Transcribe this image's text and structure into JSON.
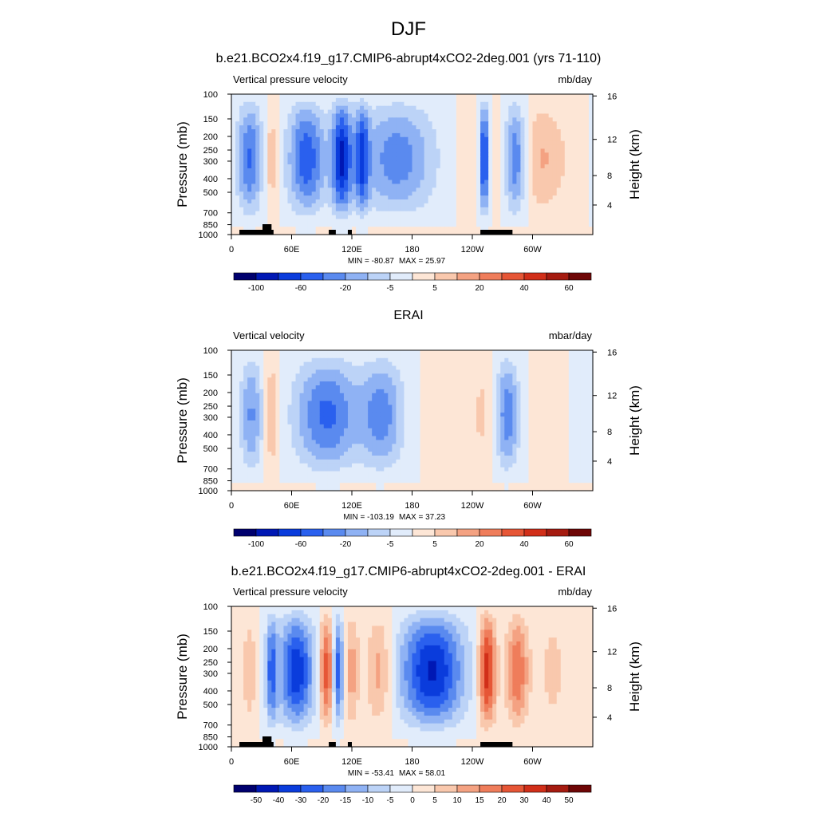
{
  "figure": {
    "title": "DJF",
    "ylabel_left": "Pressure (mb)",
    "ylabel_right": "Height (km)"
  },
  "chart_data": [
    {
      "type": "heatmap",
      "title": "b.e21.BCO2x4.f19_g17.CMIP6-abrupt4xCO2-2deg.001 (yrs 71-110)",
      "left_label": "Vertical pressure velocity",
      "units": "mb/day",
      "x_ticks": [
        "0",
        "60E",
        "120E",
        "180",
        "120W",
        "60W"
      ],
      "y_ticks": [
        "100",
        "150",
        "200",
        "250",
        "300",
        "400",
        "500",
        "700",
        "850",
        "1000"
      ],
      "height_ticks": [
        "4",
        "8",
        "12",
        "16"
      ],
      "min_label": "MIN = -80.87",
      "max_label": "MAX = 25.97",
      "min": -80.87,
      "max": 25.97,
      "colorbar_labels": [
        "-100",
        "-60",
        "-20",
        "-5",
        "5",
        "20",
        "40",
        "60"
      ],
      "colorbar_colors": [
        "#00006e",
        "#0018b4",
        "#0a3cdc",
        "#2a60ee",
        "#5a8aef",
        "#8fb2f4",
        "#bcd3f7",
        "#e1ecfb",
        "#fde6d6",
        "#f9c8ad",
        "#f4a282",
        "#ef7d5b",
        "#e65636",
        "#d12f19",
        "#a51b10",
        "#6e0606"
      ],
      "features": [
        {
          "lon": 18,
          "w": 9,
          "v": -42
        },
        {
          "lon": 40,
          "w": 5,
          "v": 18
        },
        {
          "lon": 75,
          "w": 13,
          "v": -48
        },
        {
          "lon": 110,
          "w": 7,
          "v": -62
        },
        {
          "lon": 130,
          "w": 5,
          "v": -45
        },
        {
          "lon": 165,
          "w": 26,
          "v": -36
        },
        {
          "lon": 235,
          "w": 6,
          "v": 8
        },
        {
          "lon": 252,
          "w": 3,
          "v": -60
        },
        {
          "lon": 262,
          "w": 4,
          "v": 10
        },
        {
          "lon": 283,
          "w": 7,
          "v": -38
        },
        {
          "lon": 310,
          "w": 12,
          "v": 20
        },
        {
          "lon": 340,
          "w": 14,
          "v": 8
        }
      ]
    },
    {
      "type": "heatmap",
      "title": "ERAI",
      "left_label": "Vertical velocity",
      "units": "mbar/day",
      "x_ticks": [
        "0",
        "60E",
        "120E",
        "180",
        "120W",
        "60W"
      ],
      "y_ticks": [
        "100",
        "150",
        "200",
        "250",
        "300",
        "400",
        "500",
        "700",
        "850",
        "1000"
      ],
      "height_ticks": [
        "4",
        "8",
        "12",
        "16"
      ],
      "min_label": "MIN = -103.19",
      "max_label": "MAX = 37.23",
      "min": -103.19,
      "max": 37.23,
      "colorbar_labels": [
        "-100",
        "-60",
        "-20",
        "-5",
        "5",
        "20",
        "40",
        "60"
      ],
      "colorbar_colors": [
        "#00006e",
        "#0018b4",
        "#0a3cdc",
        "#2a60ee",
        "#5a8aef",
        "#8fb2f4",
        "#bcd3f7",
        "#e1ecfb",
        "#fde6d6",
        "#f9c8ad",
        "#f4a282",
        "#ef7d5b",
        "#e65636",
        "#d12f19",
        "#a51b10",
        "#6e0606"
      ],
      "features": [
        {
          "lon": 20,
          "w": 8,
          "v": -40
        },
        {
          "lon": 40,
          "w": 5,
          "v": 28
        },
        {
          "lon": 95,
          "w": 22,
          "v": -55
        },
        {
          "lon": 150,
          "w": 15,
          "v": -45
        },
        {
          "lon": 215,
          "w": 14,
          "v": 12
        },
        {
          "lon": 250,
          "w": 8,
          "v": 15
        },
        {
          "lon": 275,
          "w": 8,
          "v": -48
        },
        {
          "lon": 320,
          "w": 12,
          "v": 10
        },
        {
          "lon": 345,
          "w": 10,
          "v": -8
        }
      ]
    },
    {
      "type": "heatmap",
      "title": "b.e21.BCO2x4.f19_g17.CMIP6-abrupt4xCO2-2deg.001 - ERAI",
      "left_label": "Vertical pressure velocity",
      "units": "mb/day",
      "x_ticks": [
        "0",
        "60E",
        "120E",
        "180",
        "120W",
        "60W"
      ],
      "y_ticks": [
        "100",
        "150",
        "200",
        "250",
        "300",
        "400",
        "500",
        "700",
        "850",
        "1000"
      ],
      "height_ticks": [
        "4",
        "8",
        "12",
        "16"
      ],
      "min_label": "MIN = -53.41",
      "max_label": "MAX = 58.01",
      "min": -53.41,
      "max": 58.01,
      "colorbar_labels": [
        "-50",
        "-40",
        "-30",
        "-20",
        "-15",
        "-10",
        "-5",
        "0",
        "5",
        "10",
        "15",
        "20",
        "30",
        "40",
        "50"
      ],
      "colorbar_colors": [
        "#00006e",
        "#0018b4",
        "#0a3cdc",
        "#2a60ee",
        "#5a8aef",
        "#8fb2f4",
        "#bcd3f7",
        "#e1ecfb",
        "#fde6d6",
        "#f9c8ad",
        "#f4a282",
        "#ef7d5b",
        "#e65636",
        "#d12f19",
        "#a51b10",
        "#6e0606"
      ],
      "features": [
        {
          "lon": 18,
          "w": 6,
          "v": 12
        },
        {
          "lon": 40,
          "w": 4,
          "v": -30
        },
        {
          "lon": 65,
          "w": 12,
          "v": -42
        },
        {
          "lon": 95,
          "w": 5,
          "v": 35
        },
        {
          "lon": 106,
          "w": 4,
          "v": -35
        },
        {
          "lon": 120,
          "w": 5,
          "v": 18
        },
        {
          "lon": 147,
          "w": 9,
          "v": 18
        },
        {
          "lon": 200,
          "w": 22,
          "v": -45
        },
        {
          "lon": 255,
          "w": 6,
          "v": 42
        },
        {
          "lon": 285,
          "w": 8,
          "v": 28
        },
        {
          "lon": 320,
          "w": 10,
          "v": 10
        }
      ]
    }
  ]
}
